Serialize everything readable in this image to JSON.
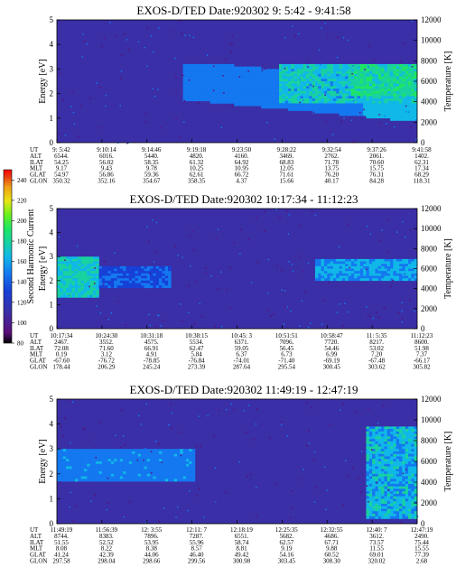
{
  "colors": {
    "background": "#3a2fa6",
    "colorscale": [
      "#000000",
      "#5a0e7a",
      "#3a2fa6",
      "#1740d6",
      "#1478f0",
      "#10b8e8",
      "#18d2a0",
      "#1ee664",
      "#6af01e",
      "#e8e414",
      "#f0a014",
      "#e83a12",
      "#ff0000"
    ]
  },
  "colorbar": {
    "label": "Second Harmonic Current",
    "ticks": [
      "80",
      "100",
      "120",
      "140",
      "160",
      "180",
      "200",
      "220",
      "240"
    ],
    "range": [
      80,
      250
    ]
  },
  "chart_data": [
    {
      "type": "heatmap",
      "title": "EXOS-D/TED   Date:920302   9: 5:42 - 9:41:58",
      "ylabel": "Energy [eV]",
      "y2label": "Temperature [K]",
      "yticks": [
        "0",
        "1",
        "2",
        "3",
        "4",
        "5"
      ],
      "y2ticks": [
        "0",
        "2000",
        "4000",
        "6000",
        "8000",
        "10000",
        "12000"
      ],
      "ylim": [
        0,
        5
      ],
      "y2lim": [
        0,
        12000
      ],
      "table": {
        "row_labels": [
          "UT",
          "ALT",
          "ILAT",
          "MLT",
          "GLAT",
          "GLON"
        ],
        "columns": [
          [
            "9: 5:42",
            "6544.",
            "54.25",
            "9.17",
            "54.97",
            "350.32"
          ],
          [
            "9:10:14",
            "6016.",
            "56.02",
            "9.43",
            "56.86",
            "352.16"
          ],
          [
            "9:14:46",
            "5440.",
            "58.35",
            "9.78",
            "59.36",
            "354.67"
          ],
          [
            "9:19:18",
            "4820.",
            "61.32",
            "10.25",
            "62.61",
            "358.35"
          ],
          [
            "9:23:50",
            "4160.",
            "64.92",
            "10.95",
            "66.72",
            "4.37"
          ],
          [
            "9:28:22",
            "3469.",
            "68.83",
            "12.05",
            "71.61",
            "15.66"
          ],
          [
            "9:32:54",
            "2762.",
            "71.78",
            "13.75",
            "76.20",
            "40.17"
          ],
          [
            "9:37:26",
            "2061.",
            "70.60",
            "15.75",
            "76.31",
            "84.28"
          ],
          [
            "9:41:58",
            "1402.",
            "62.31",
            "17.34",
            "68.29",
            "118.31"
          ]
        ]
      }
    },
    {
      "type": "heatmap",
      "title": "EXOS-D/TED   Date:920302   10:17:34 - 11:12:23",
      "ylabel": "Energy [eV]",
      "y2label": "Temperature [K]",
      "yticks": [
        "0",
        "1",
        "2",
        "3",
        "4",
        "5"
      ],
      "y2ticks": [
        "0",
        "2000",
        "4000",
        "6000",
        "8000",
        "10000",
        "12000"
      ],
      "ylim": [
        0,
        5
      ],
      "y2lim": [
        0,
        12000
      ],
      "table": {
        "row_labels": [
          "UT",
          "ALT",
          "ILAT",
          "MLT",
          "GLAT",
          "GLON"
        ],
        "columns": [
          [
            "10:17:34",
            "2467.",
            "72.08",
            "0.19",
            "-67.60",
            "178.44"
          ],
          [
            "10:24:30",
            "3552.",
            "71.60",
            "3.12",
            "-76.72",
            "206.29"
          ],
          [
            "10:31:18",
            "4575.",
            "66.91",
            "4.91",
            "-78.85",
            "245.24"
          ],
          [
            "10:38:15",
            "5534.",
            "62.47",
            "5.84",
            "-76.84",
            "273.39"
          ],
          [
            "10:45: 3",
            "6371.",
            "59.05",
            "6.37",
            "-74.01",
            "287.64"
          ],
          [
            "10:51:51",
            "7096.",
            "56.45",
            "6.73",
            "-71.40",
            "295.54"
          ],
          [
            "10:58:47",
            "7720.",
            "54.46",
            "6.99",
            "-69.19",
            "300.45"
          ],
          [
            "11: 5:35",
            "8217.",
            "53.02",
            "7.20",
            "-67.48",
            "303.62"
          ],
          [
            "11:12:23",
            "8600.",
            "51.98",
            "7.37",
            "-66.17",
            "305.82"
          ]
        ]
      }
    },
    {
      "type": "heatmap",
      "title": "EXOS-D/TED   Date:920302   11:49:19 - 12:47:19",
      "ylabel": "Energy [eV]",
      "y2label": "Temperature [K]",
      "yticks": [
        "0",
        "1",
        "2",
        "3",
        "4",
        "5"
      ],
      "y2ticks": [
        "0",
        "2000",
        "4000",
        "6000",
        "8000",
        "10000",
        "12000"
      ],
      "ylim": [
        0,
        5
      ],
      "y2lim": [
        0,
        12000
      ],
      "table": {
        "row_labels": [
          "UT",
          "ALT",
          "ILAT",
          "MLT",
          "GLAT",
          "GLON"
        ],
        "columns": [
          [
            "11:49:19",
            "8744.",
            "51.55",
            "8.08",
            "41.24",
            "297.58"
          ],
          [
            "11:56:39",
            "8383.",
            "52.52",
            "8.22",
            "42.39",
            "298.04"
          ],
          [
            "12: 3:55",
            "7896.",
            "53.95",
            "8.38",
            "44.06",
            "298.66"
          ],
          [
            "12:11: 7",
            "7287.",
            "55.96",
            "8.57",
            "46.40",
            "299.56"
          ],
          [
            "12:18:19",
            "6551.",
            "58.74",
            "8.81",
            "49.42",
            "300.98"
          ],
          [
            "12:25:35",
            "5682.",
            "62.57",
            "9.19",
            "54.16",
            "303.45"
          ],
          [
            "12:32:55",
            "4686.",
            "67.71",
            "9.88",
            "60.52",
            "308.30"
          ],
          [
            "12:40: 7",
            "3612.",
            "73.57",
            "11.55",
            "69.01",
            "320.02"
          ],
          [
            "12:47:19",
            "2490.",
            "75.44",
            "15.55",
            "77.39",
            "2.68"
          ]
        ]
      }
    }
  ]
}
